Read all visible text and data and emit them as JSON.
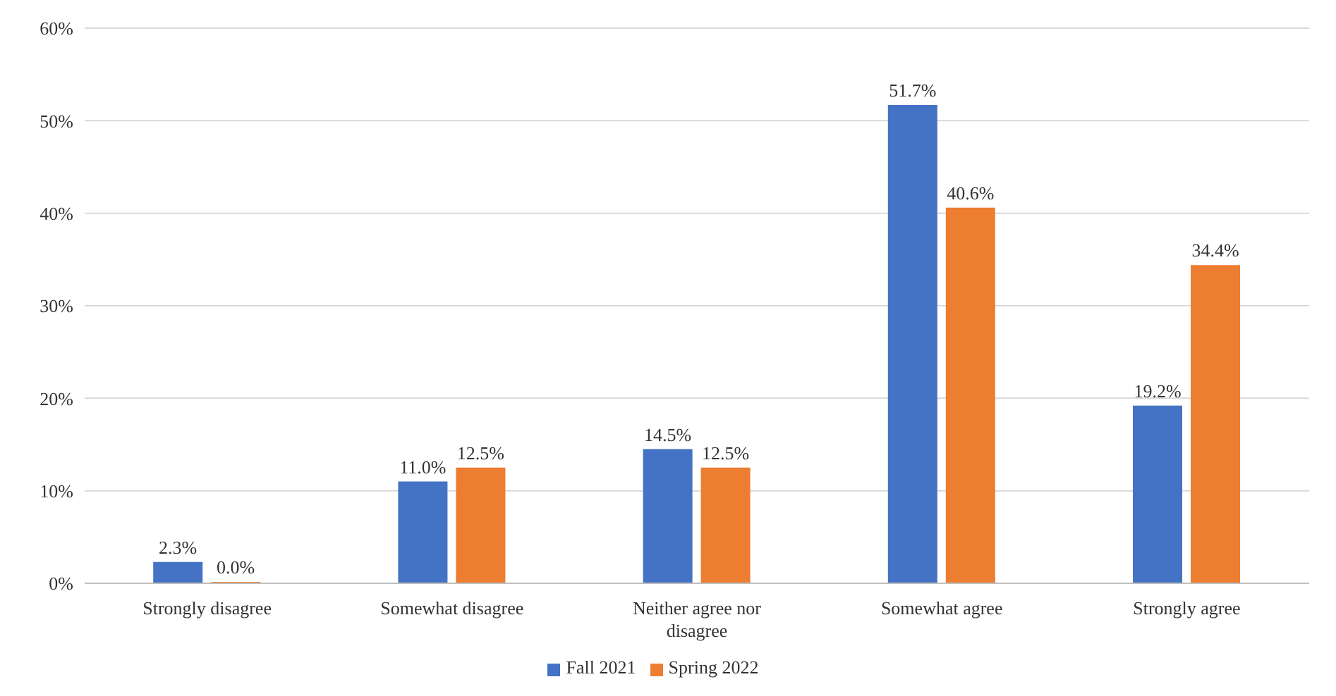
{
  "chart_data": {
    "type": "bar",
    "categories": [
      "Strongly disagree",
      "Somewhat disagree",
      "Neither agree nor disagree",
      "Somewhat agree",
      "Strongly agree"
    ],
    "series": [
      {
        "name": "Fall 2021",
        "color": "#4472c4",
        "values": [
          2.3,
          11.0,
          14.5,
          51.7,
          19.2
        ],
        "value_labels": [
          "2.3%",
          "11.0%",
          "14.5%",
          "51.7%",
          "19.2%"
        ]
      },
      {
        "name": "Spring 2022",
        "color": "#ed7d31",
        "values": [
          0.0,
          12.5,
          12.5,
          40.6,
          34.4
        ],
        "value_labels": [
          "0.0%",
          "12.5%",
          "12.5%",
          "40.6%",
          "34.4%"
        ]
      }
    ],
    "ylim": [
      0,
      60
    ],
    "yticks": [
      {
        "value": 0,
        "label": "0%"
      },
      {
        "value": 10,
        "label": "10%"
      },
      {
        "value": 20,
        "label": "20%"
      },
      {
        "value": 30,
        "label": "30%"
      },
      {
        "value": 40,
        "label": "40%"
      },
      {
        "value": 50,
        "label": "50%"
      },
      {
        "value": 60,
        "label": "60%"
      }
    ],
    "grid": "y",
    "legend": "bottom"
  }
}
